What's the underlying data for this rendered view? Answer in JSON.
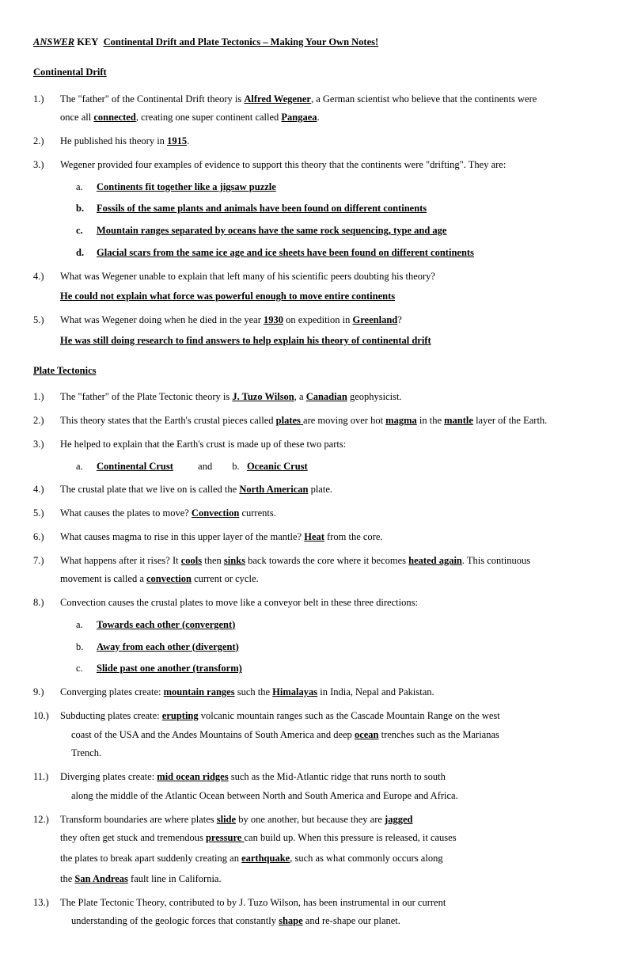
{
  "title": {
    "answer": "ANSWER",
    "key": "KEY",
    "main": "Continental Drift and Plate Tectonics – Making Your Own Notes!"
  },
  "s1": {
    "heading": "Continental Drift",
    "q1a": "The \"father\" of the Continental Drift theory is ",
    "q1_alfred": "Alfred Wegener",
    "q1b": ", a German scientist who believe that the continents were",
    "q1c": "once all ",
    "q1_connected": "connected",
    "q1d": ", creating one super continent called ",
    "q1_pangaea": "Pangaea",
    "q1e": ".",
    "q2a": "He published his theory in ",
    "q2_1915": "1915",
    "q2b": ".",
    "q3": "Wegener provided four examples of evidence to support this theory that the continents were \"drifting\". They are:",
    "q3a": "Continents fit together like a jigsaw puzzle",
    "q3b": "Fossils of the same plants and animals have been found on different continents",
    "q3c": "Mountain ranges separated by oceans have the same rock sequencing, type and age",
    "q3d": "Glacial scars from the same ice age and ice sheets have been found on different continents",
    "q4": "What was Wegener unable to explain that left many of his scientific peers doubting his theory?",
    "q4ans": "He could not explain what force was powerful enough to move entire continents",
    "q5a": " What was Wegener doing when he died in the year ",
    "q5_1930": "1930",
    "q5b": " on expedition in ",
    "q5_greenland": "Greenland",
    "q5c": "?",
    "q5ans": "He was still doing research to find answers to help explain his theory of continental drift"
  },
  "s2": {
    "heading": "Plate Tectonics",
    "q1a": "The \"father\" of the Plate Tectonic theory is ",
    "q1_wilson": "J. Tuzo Wilson",
    "q1b": ", a ",
    "q1_canadian": "Canadian",
    "q1c": " geophysicist.",
    "q2a": "This theory states that the Earth's crustal pieces called ",
    "q2_plates": "plates ",
    "q2b": "are moving over hot ",
    "q2_magma": "magma",
    "q2c": " in the ",
    "q2_mantle": "mantle",
    "q2d": " layer of the Earth.",
    "q3": "He helped to explain that the Earth's crust is made up of these two parts:",
    "q3a_cont": "Continental Crust",
    "q3_and": "and",
    "q3b_oce": "Oceanic Crust",
    "q3b_label": "b.",
    "q4a": "The crustal plate that we live on is called the ",
    "q4_na": "North American",
    "q4b": " plate.",
    "q5a": "What causes the plates to move?  ",
    "q5_conv": "Convection",
    "q5b": " currents.",
    "q6a": "What causes magma to rise in this upper layer of the mantle?  ",
    "q6_heat": "Heat",
    "q6b": " from the core.",
    "q7a": " What happens after it rises?  It ",
    "q7_cools": "cools",
    "q7b": " then ",
    "q7_sinks": "sinks",
    "q7c": " back towards the core where it becomes ",
    "q7_heated": "heated again",
    "q7d": ". This continuous",
    "q7e": "movement is called a ",
    "q7_convection": "convection",
    "q7f": " current or cycle.",
    "q8": " Convection causes the crustal plates to move like a conveyor belt in these three directions:",
    "q8a": "Towards each other (convergent)",
    "q8b": "Away from each other (divergent)",
    "q8c": "Slide past one another (transform)",
    "q9a": "Converging plates create: ",
    "q9_mtn": "mountain ranges",
    "q9b": " such the ",
    "q9_him": "Himalayas",
    "q9c": " in India, Nepal and Pakistan.",
    "q10a": " Subducting plates create: ",
    "q10_erupt": "erupting",
    "q10b": " volcanic mountain ranges such as the Cascade Mountain Range on the west",
    "q10c": "coast of the USA and the Andes Mountains of South America and deep ",
    "q10_ocean": "ocean",
    "q10d": " trenches such as the Marianas",
    "q10e": "Trench.",
    "q11a": " Diverging plates create: ",
    "q11_mor": "mid ocean ridges",
    "q11b": " such as the Mid-Atlantic ridge that runs north to south",
    "q11c": "along the middle of the Atlantic Ocean between North and South America and Europe and Africa.",
    "q12a": " Transform boundaries are where plates ",
    "q12_slide": "slide",
    "q12b": " by one another, but because they are ",
    "q12_jagged": "jagged",
    "q12c": "they often get stuck and tremendous ",
    "q12_pressure": "pressure ",
    "q12d": "can build up. When this pressure is released, it causes",
    "q12e": "the plates to break apart suddenly creating an ",
    "q12_eq": "earthquake",
    "q12f": ", such as what commonly occurs along",
    "q12g": "the ",
    "q12_sa": "San Andreas",
    "q12h": " fault line in California.",
    "q13a": " The Plate Tectonic Theory, contributed to by J. Tuzo Wilson, has been instrumental in our current",
    "q13b": "understanding of the geologic forces that constantly ",
    "q13_shape": "shape",
    "q13c": " and re-shape our planet."
  }
}
